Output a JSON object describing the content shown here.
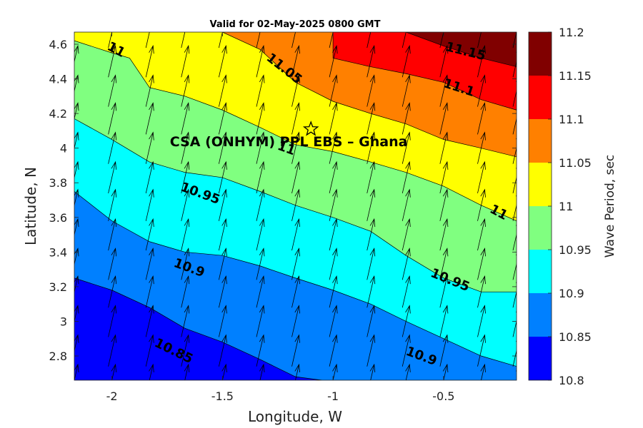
{
  "chart_data": {
    "type": "heatmap",
    "subtype": "filled-contour with wind-direction arrows",
    "title": "Valid for 02-May-2025 0800 GMT",
    "xlabel": "Longitude, W",
    "ylabel": "Latitude, N",
    "xlim": [
      -2.17,
      -0.17
    ],
    "ylim": [
      2.66,
      4.67
    ],
    "xticks": [
      -2,
      -1.5,
      -1,
      -0.5
    ],
    "xtick_labels": [
      "-2",
      "-1.5",
      "-1",
      "-0.5"
    ],
    "yticks": [
      2.8,
      3,
      3.2,
      3.4,
      3.6,
      3.8,
      4,
      4.2,
      4.4,
      4.6
    ],
    "ytick_labels": [
      "2.8",
      "3",
      "3.2",
      "3.4",
      "3.6",
      "3.8",
      "4",
      "4.2",
      "4.4",
      "4.6"
    ],
    "colorbar": {
      "label": "Wave Period, sec",
      "levels": [
        10.8,
        10.85,
        10.9,
        10.95,
        11,
        11.05,
        11.1,
        11.15,
        11.2
      ],
      "tick_labels": [
        "10.8",
        "10.85",
        "10.9",
        "10.95",
        "11",
        "11.05",
        "11.1",
        "11.15",
        "11.2"
      ],
      "colors": [
        "#0000ff",
        "#0080ff",
        "#00ffff",
        "#80ff80",
        "#ffff00",
        "#ff8000",
        "#ff0000",
        "#800000"
      ]
    },
    "contours": [
      {
        "level": 10.85,
        "points": [
          [
            -2.17,
            3.25
          ],
          [
            -2.0,
            3.18
          ],
          [
            -1.83,
            3.08
          ],
          [
            -1.67,
            2.96
          ],
          [
            -1.5,
            2.88
          ],
          [
            -1.33,
            2.78
          ],
          [
            -1.17,
            2.68
          ],
          [
            -1.05,
            2.66
          ]
        ]
      },
      {
        "level": 10.9,
        "points": [
          [
            -2.17,
            3.75
          ],
          [
            -2.0,
            3.58
          ],
          [
            -1.83,
            3.46
          ],
          [
            -1.67,
            3.4
          ],
          [
            -1.5,
            3.38
          ],
          [
            -1.33,
            3.32
          ],
          [
            -1.17,
            3.25
          ],
          [
            -1.0,
            3.18
          ],
          [
            -0.83,
            3.1
          ],
          [
            -0.67,
            3.0
          ],
          [
            -0.5,
            2.9
          ],
          [
            -0.33,
            2.8
          ],
          [
            -0.17,
            2.74
          ]
        ]
      },
      {
        "level": 10.95,
        "points": [
          [
            -2.17,
            4.17
          ],
          [
            -2.0,
            4.05
          ],
          [
            -1.83,
            3.92
          ],
          [
            -1.67,
            3.86
          ],
          [
            -1.5,
            3.83
          ],
          [
            -1.33,
            3.75
          ],
          [
            -1.17,
            3.67
          ],
          [
            -1.0,
            3.6
          ],
          [
            -0.83,
            3.52
          ],
          [
            -0.67,
            3.38
          ],
          [
            -0.5,
            3.25
          ],
          [
            -0.33,
            3.17
          ],
          [
            -0.17,
            3.17
          ]
        ]
      },
      {
        "level": 11,
        "points": [
          [
            -2.17,
            4.62
          ],
          [
            -2.0,
            4.55
          ],
          [
            -1.92,
            4.52
          ],
          [
            -1.83,
            4.35
          ],
          [
            -1.67,
            4.3
          ],
          [
            -1.5,
            4.22
          ],
          [
            -1.33,
            4.12
          ],
          [
            -1.17,
            4.02
          ],
          [
            -1.0,
            3.98
          ],
          [
            -0.83,
            3.92
          ],
          [
            -0.67,
            3.86
          ],
          [
            -0.5,
            3.78
          ],
          [
            -0.33,
            3.67
          ],
          [
            -0.17,
            3.58
          ]
        ]
      },
      {
        "level": 11.05,
        "points": [
          [
            -1.5,
            4.67
          ],
          [
            -1.33,
            4.57
          ],
          [
            -1.17,
            4.38
          ],
          [
            -1.0,
            4.27
          ],
          [
            -0.83,
            4.2
          ],
          [
            -0.67,
            4.14
          ],
          [
            -0.5,
            4.05
          ],
          [
            -0.33,
            4.0
          ],
          [
            -0.17,
            3.95
          ]
        ]
      },
      {
        "level": 11.1,
        "points": [
          [
            -1.0,
            4.67
          ],
          [
            -1.0,
            4.52
          ],
          [
            -0.83,
            4.47
          ],
          [
            -0.67,
            4.43
          ],
          [
            -0.5,
            4.38
          ],
          [
            -0.33,
            4.28
          ],
          [
            -0.17,
            4.22
          ]
        ]
      },
      {
        "level": 11.15,
        "points": [
          [
            -0.67,
            4.67
          ],
          [
            -0.5,
            4.59
          ],
          [
            -0.33,
            4.52
          ],
          [
            -0.17,
            4.47
          ]
        ]
      }
    ],
    "contour_labels": [
      {
        "text": "11",
        "x": -1.98,
        "y": 4.57,
        "angle": 28
      },
      {
        "text": "11.05",
        "x": -1.22,
        "y": 4.46,
        "angle": 38
      },
      {
        "text": "11.15",
        "x": -0.4,
        "y": 4.56,
        "angle": 14
      },
      {
        "text": "11.1",
        "x": -0.43,
        "y": 4.35,
        "angle": 18
      },
      {
        "text": "11",
        "x": -1.21,
        "y": 4.0,
        "angle": 20
      },
      {
        "text": "10.95",
        "x": -1.6,
        "y": 3.74,
        "angle": 20
      },
      {
        "text": "11",
        "x": -0.25,
        "y": 3.63,
        "angle": 28
      },
      {
        "text": "10.9",
        "x": -1.65,
        "y": 3.31,
        "angle": 20
      },
      {
        "text": "10.95",
        "x": -0.47,
        "y": 3.24,
        "angle": 22
      },
      {
        "text": "10.85",
        "x": -1.72,
        "y": 2.83,
        "angle": 26
      },
      {
        "text": "10.9",
        "x": -0.6,
        "y": 2.8,
        "angle": 20
      }
    ],
    "station": {
      "text": "CSA (ONHYM) PPL EBS  – Ghana",
      "marker_x": -1.1,
      "marker_y": 4.11,
      "label_x": -1.35,
      "label_y": 4.04,
      "icon": "star-icon"
    },
    "arrows": {
      "x": [
        -2.17,
        -2.0,
        -1.83,
        -1.67,
        -1.5,
        -1.33,
        -1.17,
        -1.0,
        -0.83,
        -0.67,
        -0.5,
        -0.33,
        -0.17
      ],
      "y": [
        2.66,
        2.83,
        3.0,
        3.17,
        3.33,
        3.5,
        3.67,
        3.83,
        4.0,
        4.17,
        4.33,
        4.5,
        4.67
      ],
      "direction": "towards NNE",
      "color": "#000000"
    }
  }
}
